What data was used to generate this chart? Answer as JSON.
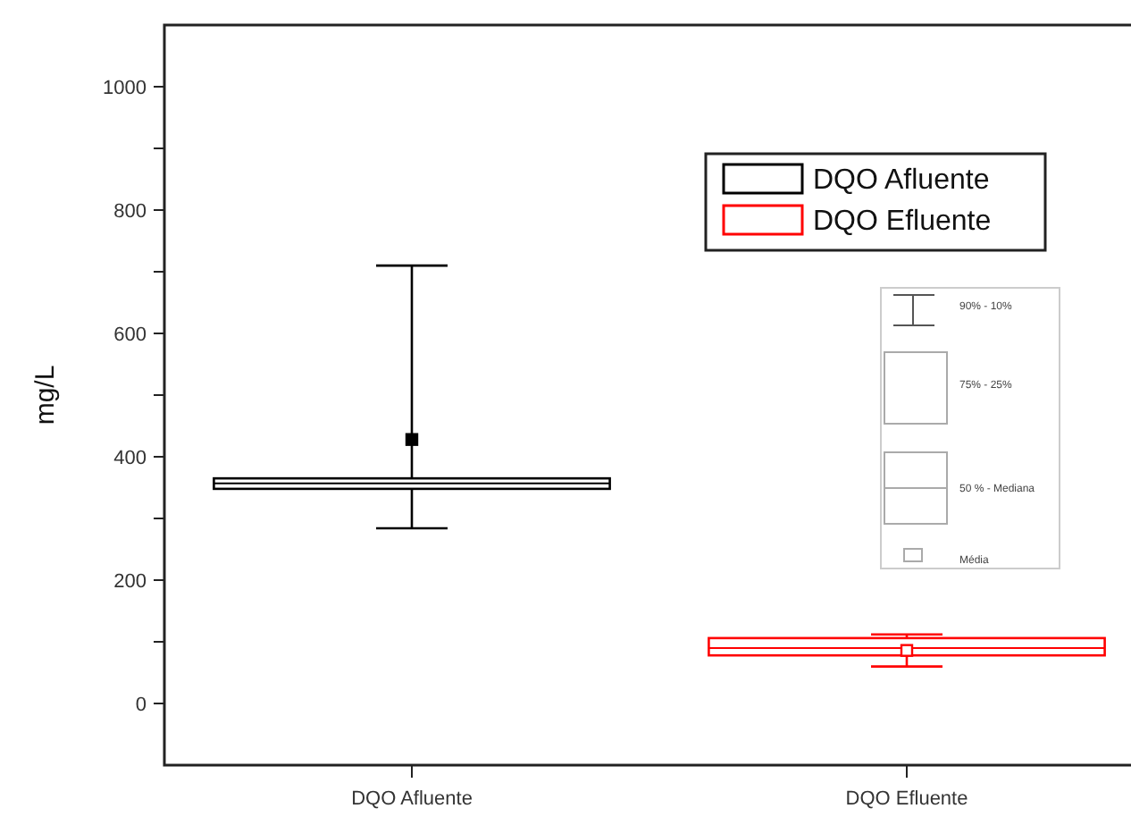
{
  "chart_data": {
    "type": "box",
    "ylabel": "mg/L",
    "categories": [
      "DQO Afluente",
      "DQO Efluente"
    ],
    "series": [
      {
        "name": "DQO Afluente",
        "color": "#000000",
        "boxes": [
          {
            "low": 284,
            "q1": 348,
            "median": 357,
            "q3": 365,
            "high": 710,
            "mean": 428
          },
          null
        ]
      },
      {
        "name": "DQO Efluente",
        "color": "#ff0000",
        "boxes": [
          null,
          {
            "low": 60,
            "q1": 78,
            "median": 90,
            "q3": 106,
            "high": 112,
            "mean": 86
          }
        ]
      }
    ],
    "ylim": [
      -100,
      1100
    ],
    "yticks": [
      0,
      {
        "value": 100,
        "label": null
      },
      200,
      {
        "value": 300,
        "label": null
      },
      400,
      {
        "value": 500,
        "label": null
      },
      600,
      {
        "value": 700,
        "label": null
      },
      800,
      {
        "value": 900,
        "label": null
      },
      1000
    ],
    "legend": "top right",
    "grid": false,
    "annotations": [
      "90% - 10%",
      "75% - 25%",
      "50 % - Mediana",
      "Média"
    ]
  }
}
